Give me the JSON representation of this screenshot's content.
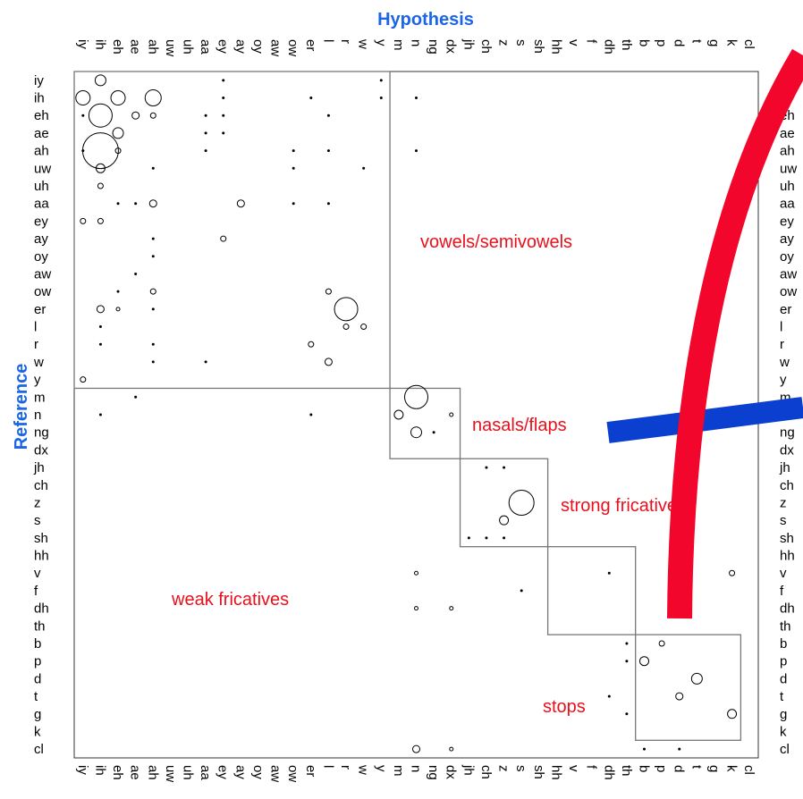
{
  "chart_data": {
    "type": "bubble-matrix",
    "title": "Hypothesis",
    "y_label": "Reference",
    "categories": [
      "iy",
      "ih",
      "eh",
      "ae",
      "ah",
      "uw",
      "uh",
      "aa",
      "ey",
      "ay",
      "oy",
      "aw",
      "ow",
      "er",
      "l",
      "r",
      "w",
      "y",
      "m",
      "n",
      "ng",
      "dx",
      "jh",
      "ch",
      "z",
      "s",
      "sh",
      "hh",
      "v",
      "f",
      "dh",
      "th",
      "b",
      "p",
      "d",
      "t",
      "g",
      "k",
      "cl"
    ],
    "cells": [
      [
        0,
        1,
        6
      ],
      [
        1,
        0,
        8
      ],
      [
        1,
        2,
        8
      ],
      [
        1,
        4,
        9
      ],
      [
        2,
        1,
        13
      ],
      [
        2,
        3,
        4
      ],
      [
        2,
        4,
        3
      ],
      [
        3,
        2,
        6
      ],
      [
        4,
        1,
        20
      ],
      [
        4,
        2,
        3
      ],
      [
        5,
        1,
        5
      ],
      [
        6,
        1,
        3
      ],
      [
        7,
        4,
        4
      ],
      [
        7,
        9,
        4
      ],
      [
        8,
        0,
        3
      ],
      [
        8,
        1,
        3
      ],
      [
        9,
        8,
        3
      ],
      [
        12,
        4,
        3
      ],
      [
        12,
        14,
        3
      ],
      [
        13,
        1,
        4
      ],
      [
        13,
        2,
        2
      ],
      [
        13,
        15,
        13
      ],
      [
        14,
        15,
        3
      ],
      [
        14,
        16,
        3
      ],
      [
        15,
        13,
        3
      ],
      [
        16,
        14,
        4
      ],
      [
        17,
        0,
        3
      ],
      [
        18,
        19,
        13
      ],
      [
        19,
        18,
        5
      ],
      [
        19,
        21,
        2
      ],
      [
        20,
        19,
        6
      ],
      [
        24,
        25,
        14
      ],
      [
        25,
        24,
        5
      ],
      [
        28,
        19,
        2
      ],
      [
        28,
        37,
        3
      ],
      [
        30,
        19,
        2
      ],
      [
        30,
        21,
        2
      ],
      [
        32,
        33,
        3
      ],
      [
        33,
        32,
        5
      ],
      [
        34,
        35,
        6
      ],
      [
        35,
        34,
        4
      ],
      [
        36,
        37,
        5
      ],
      [
        38,
        19,
        4
      ],
      [
        38,
        21,
        2
      ],
      [
        0,
        8,
        1.5
      ],
      [
        0,
        17,
        1.5
      ],
      [
        1,
        8,
        1.5
      ],
      [
        1,
        13,
        1.5
      ],
      [
        1,
        17,
        1.5
      ],
      [
        1,
        19,
        1.5
      ],
      [
        2,
        0,
        1.5
      ],
      [
        2,
        7,
        1.5
      ],
      [
        2,
        8,
        1.5
      ],
      [
        2,
        14,
        1.5
      ],
      [
        3,
        7,
        1.5
      ],
      [
        3,
        8,
        1.5
      ],
      [
        4,
        0,
        1.5
      ],
      [
        4,
        7,
        1.5
      ],
      [
        4,
        12,
        1.5
      ],
      [
        4,
        14,
        1.5
      ],
      [
        4,
        19,
        1.5
      ],
      [
        5,
        4,
        1.5
      ],
      [
        5,
        12,
        1.5
      ],
      [
        5,
        16,
        1.5
      ],
      [
        7,
        2,
        1.5
      ],
      [
        7,
        3,
        1.5
      ],
      [
        7,
        12,
        1.5
      ],
      [
        7,
        14,
        1.5
      ],
      [
        9,
        4,
        1.5
      ],
      [
        10,
        4,
        1.5
      ],
      [
        11,
        3,
        1.5
      ],
      [
        12,
        2,
        1.5
      ],
      [
        13,
        4,
        1.5
      ],
      [
        14,
        1,
        1.5
      ],
      [
        15,
        1,
        1.5
      ],
      [
        15,
        4,
        1.5
      ],
      [
        16,
        4,
        1.5
      ],
      [
        16,
        7,
        1.5
      ],
      [
        18,
        3,
        1.5
      ],
      [
        19,
        1,
        1.5
      ],
      [
        19,
        13,
        1.5
      ],
      [
        20,
        20,
        1.5
      ],
      [
        22,
        23,
        1.5
      ],
      [
        22,
        24,
        1.5
      ],
      [
        26,
        22,
        1.5
      ],
      [
        26,
        23,
        1.5
      ],
      [
        26,
        24,
        1.5
      ],
      [
        28,
        30,
        1.5
      ],
      [
        29,
        25,
        1.5
      ],
      [
        32,
        31,
        1.5
      ],
      [
        33,
        31,
        1.5
      ],
      [
        35,
        30,
        1.5
      ],
      [
        36,
        31,
        1.5
      ],
      [
        38,
        32,
        1.5
      ],
      [
        38,
        34,
        1.5
      ]
    ],
    "groups": [
      {
        "label": "vowels/semivowels",
        "start": 0,
        "end": 17
      },
      {
        "label": "nasals/flaps",
        "start": 18,
        "end": 21
      },
      {
        "label": "strong fricatives",
        "start": 22,
        "end": 26
      },
      {
        "label": "weak fricatives",
        "start": 27,
        "end": 31
      },
      {
        "label": "stops",
        "start": 32,
        "end": 37
      }
    ],
    "color": "#000000",
    "title_color": "#1a66e6",
    "annotation_color": "#e8101c"
  }
}
